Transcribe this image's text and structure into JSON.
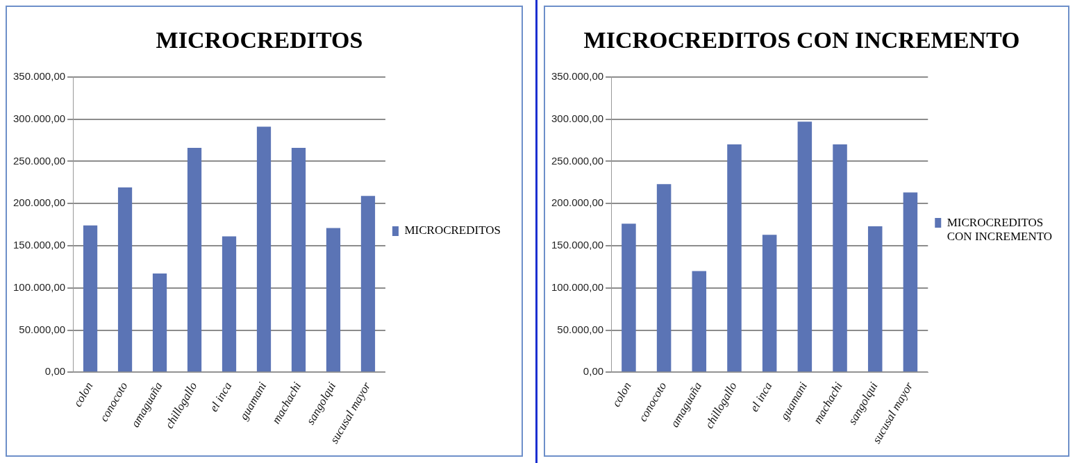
{
  "chart_data": [
    {
      "type": "bar",
      "title": "MICROCREDITOS",
      "categories": [
        "colon",
        "conocoto",
        "amaguaña",
        "chillogallo",
        "el inca",
        "guamani",
        "machachi",
        "sangolqui",
        "sucusal mayor"
      ],
      "series": [
        {
          "name": "MICROCREDITOS",
          "color": "#5b74b5",
          "values": [
            174000,
            219000,
            117000,
            266000,
            161000,
            291000,
            266000,
            171000,
            209000
          ]
        }
      ],
      "ylim": [
        0,
        350000
      ],
      "yticks": [
        {
          "value": 0,
          "label": "0,00"
        },
        {
          "value": 50000,
          "label": "50.000,00"
        },
        {
          "value": 100000,
          "label": "100.000,00"
        },
        {
          "value": 150000,
          "label": "150.000,00"
        },
        {
          "value": 200000,
          "label": "200.000,00"
        },
        {
          "value": 250000,
          "label": "250.000,00"
        },
        {
          "value": 300000,
          "label": "300.000,00"
        },
        {
          "value": 350000,
          "label": "350.000,00"
        }
      ],
      "grid": "y",
      "legend": "right"
    },
    {
      "type": "bar",
      "title": "MICROCREDITOS CON INCREMENTO",
      "categories": [
        "colon",
        "conocoto",
        "amaguaña",
        "chillogallo",
        "el inca",
        "guamani",
        "machachi",
        "sangolqui",
        "sucusal mayor"
      ],
      "series": [
        {
          "name": "MICROCREDITOS CON INCREMENTO",
          "color": "#5b74b5",
          "values": [
            176000,
            223000,
            120000,
            270000,
            163000,
            297000,
            270000,
            173000,
            213000
          ]
        }
      ],
      "ylim": [
        0,
        350000
      ],
      "yticks": [
        {
          "value": 0,
          "label": "0,00"
        },
        {
          "value": 50000,
          "label": "50.000,00"
        },
        {
          "value": 100000,
          "label": "100.000,00"
        },
        {
          "value": 150000,
          "label": "150.000,00"
        },
        {
          "value": 200000,
          "label": "200.000,00"
        },
        {
          "value": 250000,
          "label": "250.000,00"
        },
        {
          "value": 300000,
          "label": "300.000,00"
        },
        {
          "value": 350000,
          "label": "350.000,00"
        }
      ],
      "grid": "y",
      "legend": "right"
    }
  ]
}
